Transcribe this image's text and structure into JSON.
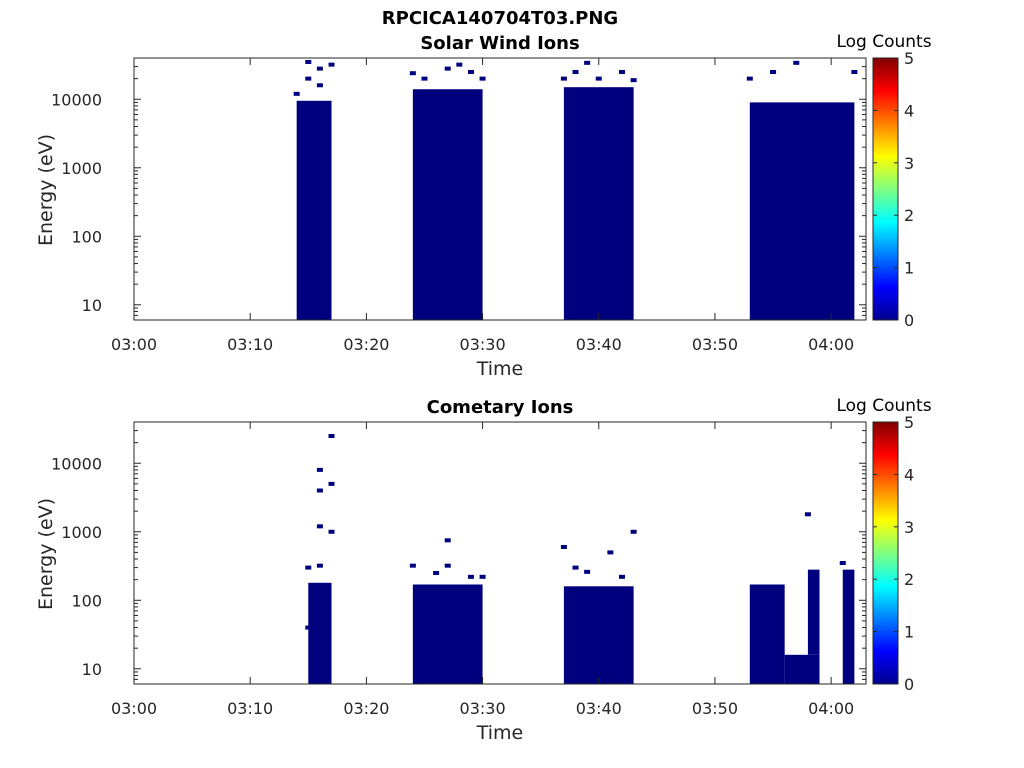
{
  "figure_title": "RPCICA140704T03.PNG",
  "chart_data": [
    {
      "type": "heatmap",
      "title": "Solar Wind Ions",
      "xlabel": "Time",
      "ylabel": "Energy (eV)",
      "x_ticks": [
        "03:00",
        "03:10",
        "03:20",
        "03:30",
        "03:40",
        "03:50",
        "04:00"
      ],
      "xlim_minutes": [
        0,
        63
      ],
      "y_ticks": [
        "10",
        "100",
        "1000",
        "10000"
      ],
      "y_scale": "log",
      "ylim": [
        6,
        40000
      ],
      "colorbar": {
        "label": "Log Counts",
        "range": [
          0,
          5
        ],
        "ticks": [
          "0",
          "1",
          "2",
          "3",
          "4",
          "5"
        ],
        "colormap": "jet"
      },
      "fill_color": "#00007f",
      "blocks": [
        {
          "t0": "03:14",
          "t1": "03:17",
          "emin": 6,
          "emax": 9500
        },
        {
          "t0": "03:24",
          "t1": "03:30",
          "emin": 6,
          "emax": 14000
        },
        {
          "t0": "03:37",
          "t1": "03:43",
          "emin": 6,
          "emax": 15000
        },
        {
          "t0": "03:53",
          "t1": "04:02",
          "emin": 6,
          "emax": 9000
        }
      ],
      "sparse_points": [
        {
          "t": "03:14",
          "e": 12000
        },
        {
          "t": "03:15",
          "e": 20000
        },
        {
          "t": "03:15",
          "e": 35000
        },
        {
          "t": "03:16",
          "e": 28000
        },
        {
          "t": "03:17",
          "e": 32000
        },
        {
          "t": "03:16",
          "e": 16000
        },
        {
          "t": "03:24",
          "e": 24000
        },
        {
          "t": "03:25",
          "e": 20000
        },
        {
          "t": "03:27",
          "e": 28000
        },
        {
          "t": "03:28",
          "e": 32000
        },
        {
          "t": "03:29",
          "e": 25000
        },
        {
          "t": "03:30",
          "e": 20000
        },
        {
          "t": "03:37",
          "e": 20000
        },
        {
          "t": "03:38",
          "e": 25000
        },
        {
          "t": "03:39",
          "e": 34000
        },
        {
          "t": "03:40",
          "e": 20000
        },
        {
          "t": "03:42",
          "e": 25000
        },
        {
          "t": "03:43",
          "e": 19000
        },
        {
          "t": "03:53",
          "e": 20000
        },
        {
          "t": "03:55",
          "e": 25000
        },
        {
          "t": "03:57",
          "e": 34000
        },
        {
          "t": "04:02",
          "e": 25000
        }
      ]
    },
    {
      "type": "heatmap",
      "title": "Cometary Ions",
      "xlabel": "Time",
      "ylabel": "Energy (eV)",
      "x_ticks": [
        "03:00",
        "03:10",
        "03:20",
        "03:30",
        "03:40",
        "03:50",
        "04:00"
      ],
      "xlim_minutes": [
        0,
        63
      ],
      "y_ticks": [
        "10",
        "100",
        "1000",
        "10000"
      ],
      "y_scale": "log",
      "ylim": [
        6,
        40000
      ],
      "colorbar": {
        "label": "Log Counts",
        "range": [
          0,
          5
        ],
        "ticks": [
          "0",
          "1",
          "2",
          "3",
          "4",
          "5"
        ],
        "colormap": "jet"
      },
      "fill_color": "#00007f",
      "blocks": [
        {
          "t0": "03:15",
          "t1": "03:17",
          "emin": 6,
          "emax": 180
        },
        {
          "t0": "03:24",
          "t1": "03:30",
          "emin": 6,
          "emax": 170
        },
        {
          "t0": "03:37",
          "t1": "03:43",
          "emin": 6,
          "emax": 160
        },
        {
          "t0": "03:53",
          "t1": "03:56",
          "emin": 6,
          "emax": 170
        },
        {
          "t0": "03:56",
          "t1": "03:59",
          "emin": 6,
          "emax": 16
        },
        {
          "t0": "03:58",
          "t1": "03:59",
          "emin": 16,
          "emax": 280
        },
        {
          "t0": "04:01",
          "t1": "04:02",
          "emin": 6,
          "emax": 280
        }
      ],
      "sparse_points": [
        {
          "t": "03:15",
          "e": 300
        },
        {
          "t": "03:16",
          "e": 320
        },
        {
          "t": "03:16",
          "e": 1200
        },
        {
          "t": "03:17",
          "e": 1000
        },
        {
          "t": "03:16",
          "e": 4000
        },
        {
          "t": "03:17",
          "e": 5000
        },
        {
          "t": "03:16",
          "e": 8000
        },
        {
          "t": "03:17",
          "e": 25000
        },
        {
          "t": "03:15",
          "e": 40
        },
        {
          "t": "03:24",
          "e": 320
        },
        {
          "t": "03:26",
          "e": 250
        },
        {
          "t": "03:27",
          "e": 320
        },
        {
          "t": "03:27",
          "e": 750
        },
        {
          "t": "03:29",
          "e": 220
        },
        {
          "t": "03:30",
          "e": 220
        },
        {
          "t": "03:37",
          "e": 600
        },
        {
          "t": "03:38",
          "e": 300
        },
        {
          "t": "03:39",
          "e": 260
        },
        {
          "t": "03:41",
          "e": 500
        },
        {
          "t": "03:42",
          "e": 220
        },
        {
          "t": "03:43",
          "e": 1000
        },
        {
          "t": "03:58",
          "e": 1800
        },
        {
          "t": "04:01",
          "e": 350
        }
      ]
    }
  ]
}
